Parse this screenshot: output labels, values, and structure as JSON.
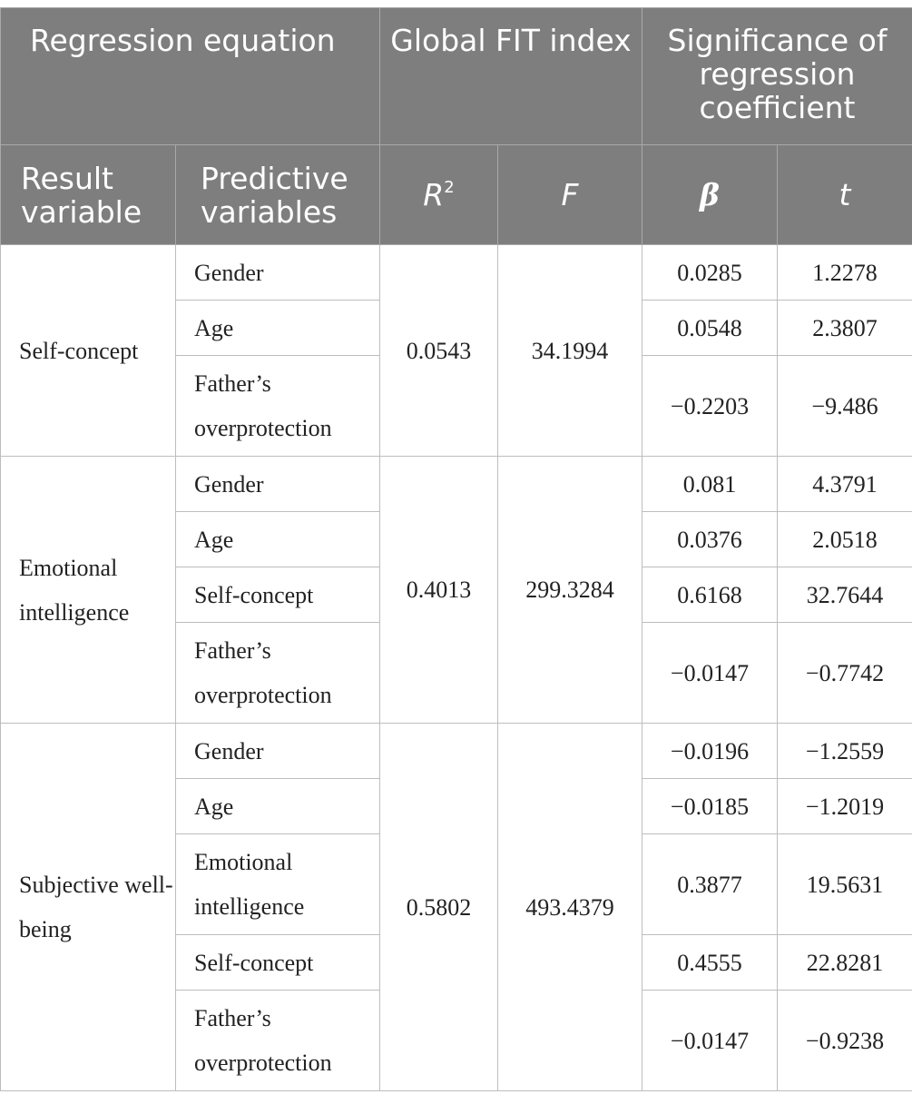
{
  "header": {
    "regression_equation": "Regression equation",
    "global_fit_index": "Global FIT index",
    "significance": "Significance of regression coefficient",
    "result_variable": "Result variable",
    "predictive_variables": "Predictive variables",
    "r_base": "R",
    "r_sup": "2",
    "f": "F",
    "beta": "β",
    "t": "t"
  },
  "groups": [
    {
      "result": "Self-concept",
      "r2": "0.0543",
      "f": "34.1994",
      "rows": [
        {
          "predictor": "Gender",
          "beta": "0.0285",
          "t": "1.2278"
        },
        {
          "predictor": "Age",
          "beta": "0.0548",
          "t": "2.3807"
        },
        {
          "predictor": "Father’s overprotection",
          "beta": "−0.2203",
          "t": "−9.486"
        }
      ]
    },
    {
      "result": "Emotional intelligence",
      "r2": "0.4013",
      "f": "299.3284",
      "rows": [
        {
          "predictor": "Gender",
          "beta": "0.081",
          "t": "4.3791"
        },
        {
          "predictor": "Age",
          "beta": "0.0376",
          "t": "2.0518"
        },
        {
          "predictor": "Self-concept",
          "beta": "0.6168",
          "t": "32.7644"
        },
        {
          "predictor": "Father’s overprotection",
          "beta": "−0.0147",
          "t": "−0.7742"
        }
      ]
    },
    {
      "result": "Subjective well-being",
      "r2": "0.5802",
      "f": "493.4379",
      "rows": [
        {
          "predictor": "Gender",
          "beta": "−0.0196",
          "t": "−1.2559"
        },
        {
          "predictor": "Age",
          "beta": "−0.0185",
          "t": "−1.2019"
        },
        {
          "predictor": "Emotional intelligence",
          "beta": "0.3877",
          "t": "19.5631"
        },
        {
          "predictor": "Self-concept",
          "beta": "0.4555",
          "t": "22.8281"
        },
        {
          "predictor": "Father’s overprotection",
          "beta": "−0.0147",
          "t": "−0.9238"
        }
      ]
    }
  ]
}
